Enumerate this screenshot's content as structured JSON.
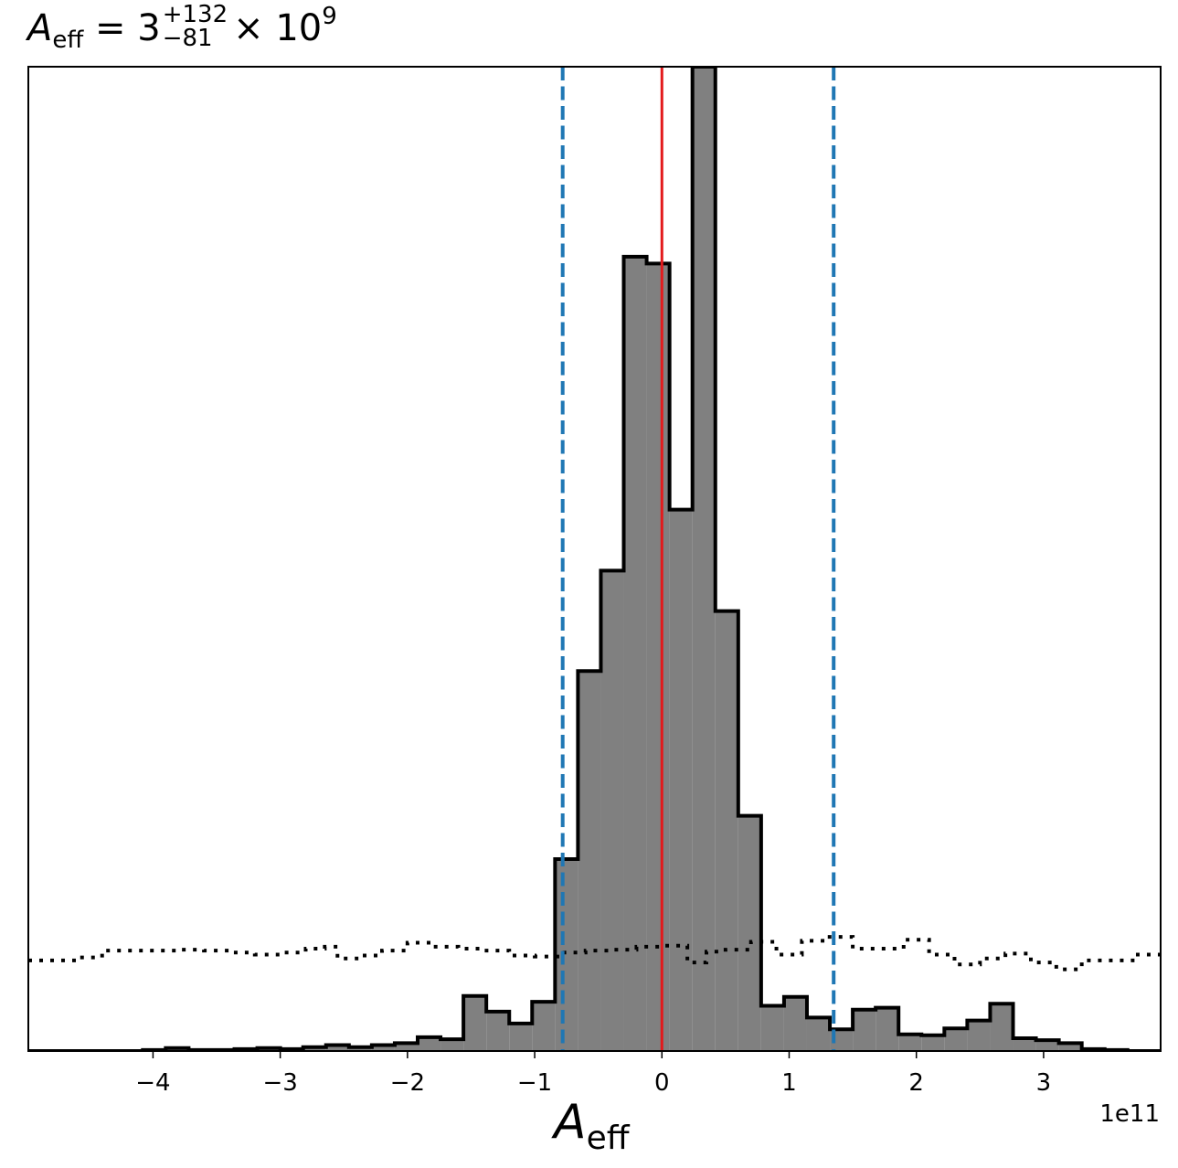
{
  "chart_data": {
    "type": "histogram",
    "title": {
      "var": "A",
      "var_sub": "eff",
      "eq": " = 3",
      "sup": "+132",
      "sub": "−81",
      "mult": "× 10",
      "exp": "9"
    },
    "xlabel": {
      "var": "A",
      "sub": "eff"
    },
    "x_offset_label": "1e11",
    "xlim": [
      -4.98,
      3.92
    ],
    "ylim": [
      0,
      1.0
    ],
    "x_ticks": [
      -4,
      -3,
      -2,
      -1,
      0,
      1,
      2,
      3
    ],
    "x_tick_labels": [
      "−4",
      "−3",
      "−2",
      "−1",
      "0",
      "1",
      "2",
      "3"
    ],
    "grid": false,
    "posterior_bins": {
      "edges": [
        -4.98,
        -4.8,
        -4.62,
        -4.44,
        -4.26,
        -4.08,
        -3.9,
        -3.72,
        -3.54,
        -3.36,
        -3.18,
        -3.0,
        -2.82,
        -2.64,
        -2.46,
        -2.28,
        -2.1,
        -1.92,
        -1.74,
        -1.56,
        -1.38,
        -1.2,
        -1.02,
        -0.84,
        -0.66,
        -0.48,
        -0.3,
        -0.12,
        0.06,
        0.24,
        0.42,
        0.6,
        0.78,
        0.96,
        1.14,
        1.32,
        1.5,
        1.68,
        1.86,
        2.04,
        2.22,
        2.4,
        2.58,
        2.76,
        2.94,
        3.12,
        3.3,
        3.48,
        3.66,
        3.84,
        3.92
      ],
      "values": [
        0,
        0,
        0,
        0,
        0,
        0.001,
        0.003,
        0.001,
        0.001,
        0.002,
        0.003,
        0.002,
        0.004,
        0.006,
        0.004,
        0.006,
        0.008,
        0.014,
        0.012,
        0.056,
        0.04,
        0.028,
        0.05,
        0.195,
        0.386,
        0.488,
        0.807,
        0.8,
        0.55,
        1.0,
        0.447,
        0.239,
        0.046,
        0.055,
        0.034,
        0.022,
        0.042,
        0.044,
        0.017,
        0.016,
        0.023,
        0.031,
        0.048,
        0.013,
        0.011,
        0.008,
        0.002,
        0.001,
        0,
        0
      ]
    },
    "prior_line": {
      "style": "dotted",
      "x": [
        -4.98,
        -4.6,
        -4.4,
        -4.2,
        -4.0,
        -3.8,
        -3.6,
        -3.4,
        -3.2,
        -3.0,
        -2.8,
        -2.65,
        -2.55,
        -2.4,
        -2.2,
        -2.0,
        -1.8,
        -1.6,
        -1.4,
        -1.2,
        -1.0,
        -0.8,
        -0.6,
        -0.4,
        -0.2,
        0.0,
        0.2,
        0.35,
        0.5,
        0.7,
        0.9,
        1.1,
        1.3,
        1.5,
        1.7,
        1.9,
        2.1,
        2.3,
        2.5,
        2.7,
        2.9,
        3.1,
        3.3,
        3.5,
        3.7,
        3.92
      ],
      "y": [
        0.092,
        0.095,
        0.102,
        0.102,
        0.102,
        0.103,
        0.102,
        0.1,
        0.098,
        0.1,
        0.104,
        0.106,
        0.094,
        0.097,
        0.102,
        0.11,
        0.106,
        0.104,
        0.102,
        0.097,
        0.096,
        0.1,
        0.102,
        0.103,
        0.106,
        0.107,
        0.09,
        0.101,
        0.103,
        0.111,
        0.098,
        0.112,
        0.116,
        0.104,
        0.104,
        0.113,
        0.098,
        0.088,
        0.094,
        0.099,
        0.09,
        0.083,
        0.092,
        0.092,
        0.098,
        0.098
      ]
    },
    "median_line": {
      "x": 0.0,
      "color": "#e31a1c"
    },
    "ci_lines": {
      "x": [
        -0.78,
        1.35
      ],
      "color": "#1f77b4",
      "style": "dashed"
    },
    "colors": {
      "fill": "#808080",
      "edge": "#000000"
    }
  }
}
